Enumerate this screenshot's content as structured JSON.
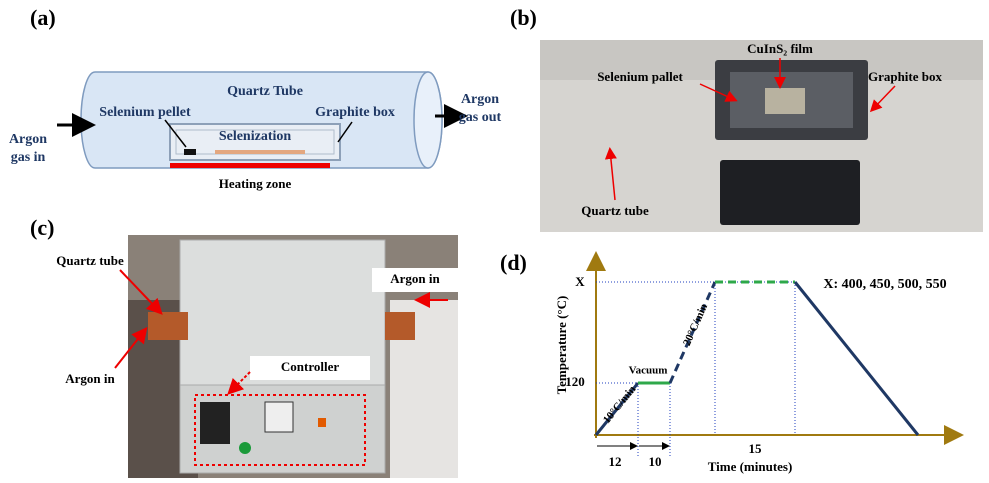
{
  "panel_a": {
    "label": "(a)",
    "tube": "Quartz Tube",
    "inlet": [
      "Argon",
      "gas in"
    ],
    "outlet": [
      "Argon",
      "gas out"
    ],
    "pellet": "Selenium pellet",
    "box": "Graphite box",
    "process": "Selenization",
    "heater": "Heating zone"
  },
  "panel_b": {
    "label": "(b)",
    "film": "CuInS₂ film",
    "pallet": "Selenium pallet",
    "box": "Graphite box",
    "tube": "Quartz tube"
  },
  "panel_c": {
    "label": "(c)",
    "tube": "Quartz tube",
    "argon_right": "Argon in",
    "argon_left": "Argon in",
    "controller": "Controller"
  },
  "panel_d": {
    "label": "(d)",
    "y_axis": "Temperature (°C)",
    "x_axis": "Time (minutes)",
    "y_levels": [
      "X",
      "120"
    ],
    "durations": [
      "12",
      "10",
      "15"
    ],
    "ramp1": "10°C/min",
    "ramp2": "20°C/min",
    "hold1": "Vacuum",
    "note": "X: 400, 450, 500, 550"
  }
}
